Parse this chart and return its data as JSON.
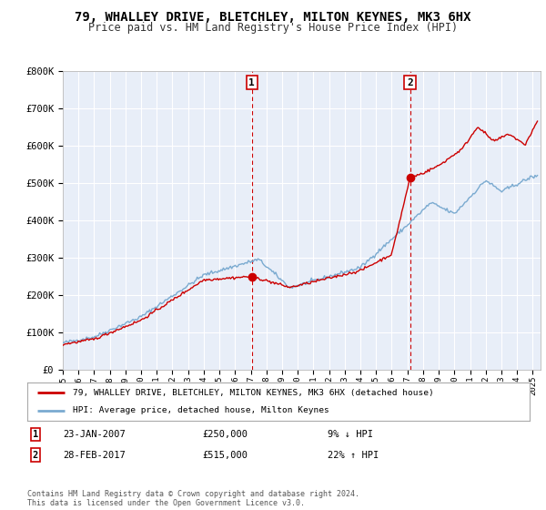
{
  "title": "79, WHALLEY DRIVE, BLETCHLEY, MILTON KEYNES, MK3 6HX",
  "subtitle": "Price paid vs. HM Land Registry's House Price Index (HPI)",
  "background_color": "#ffffff",
  "plot_bg_color": "#e8eef8",
  "grid_color": "#ffffff",
  "ylim": [
    0,
    800000
  ],
  "yticks": [
    0,
    100000,
    200000,
    300000,
    400000,
    500000,
    600000,
    700000,
    800000
  ],
  "ytick_labels": [
    "£0",
    "£100K",
    "£200K",
    "£300K",
    "£400K",
    "£500K",
    "£600K",
    "£700K",
    "£800K"
  ],
  "xmin": 1995.0,
  "xmax": 2025.5,
  "xticks": [
    1995,
    1996,
    1997,
    1998,
    1999,
    2000,
    2001,
    2002,
    2003,
    2004,
    2005,
    2006,
    2007,
    2008,
    2009,
    2010,
    2011,
    2012,
    2013,
    2014,
    2015,
    2016,
    2017,
    2018,
    2019,
    2020,
    2021,
    2022,
    2023,
    2024,
    2025
  ],
  "sale1_x": 2007.07,
  "sale1_y": 250000,
  "sale2_x": 2017.17,
  "sale2_y": 515000,
  "sale1_label": "1",
  "sale2_label": "2",
  "vline_color": "#cc0000",
  "dot_color": "#cc0000",
  "legend_line1": "79, WHALLEY DRIVE, BLETCHLEY, MILTON KEYNES, MK3 6HX (detached house)",
  "legend_line2": "HPI: Average price, detached house, Milton Keynes",
  "annotation1_date": "23-JAN-2007",
  "annotation1_price": "£250,000",
  "annotation1_hpi": "9% ↓ HPI",
  "annotation2_date": "28-FEB-2017",
  "annotation2_price": "£515,000",
  "annotation2_hpi": "22% ↑ HPI",
  "footer": "Contains HM Land Registry data © Crown copyright and database right 2024.\nThis data is licensed under the Open Government Licence v3.0.",
  "hpi_color": "#7aaad0",
  "sold_color": "#cc0000",
  "title_fontsize": 10,
  "subtitle_fontsize": 8.5
}
